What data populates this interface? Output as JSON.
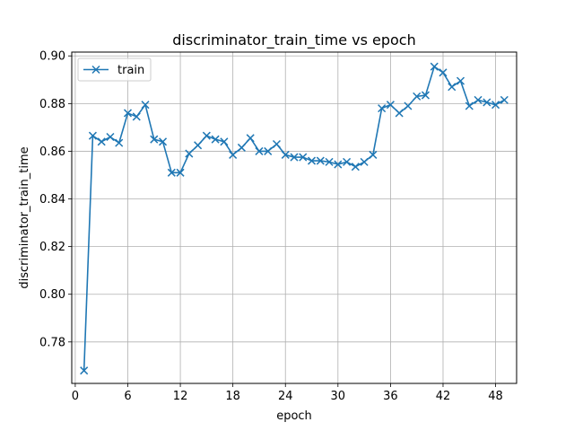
{
  "chart_data": {
    "type": "line",
    "title": "discriminator_train_time vs epoch",
    "xlabel": "epoch",
    "ylabel": "discriminator_train_time",
    "xlim": [
      -0.4,
      50.4
    ],
    "ylim": [
      0.7626,
      0.9016
    ],
    "xticks": [
      0,
      6,
      12,
      18,
      24,
      30,
      36,
      42,
      48
    ],
    "yticks": [
      0.78,
      0.8,
      0.82,
      0.84,
      0.86,
      0.88,
      0.9
    ],
    "ytick_labels": [
      "0.78",
      "0.80",
      "0.82",
      "0.84",
      "0.86",
      "0.88",
      "0.90"
    ],
    "grid": true,
    "legend_position": "top-left",
    "colors": {
      "series": "#1f77b4",
      "grid": "#b0b0b0"
    },
    "series": [
      {
        "name": "train",
        "marker": "x",
        "x": [
          1,
          2,
          3,
          4,
          5,
          6,
          7,
          8,
          9,
          10,
          11,
          12,
          13,
          14,
          15,
          16,
          17,
          18,
          19,
          20,
          21,
          22,
          23,
          24,
          25,
          26,
          27,
          28,
          29,
          30,
          31,
          32,
          33,
          34,
          35,
          36,
          37,
          38,
          39,
          40,
          41,
          42,
          43,
          44,
          45,
          46,
          47,
          48,
          49
        ],
        "values": [
          0.768,
          0.8665,
          0.864,
          0.866,
          0.8635,
          0.876,
          0.8745,
          0.8795,
          0.865,
          0.864,
          0.851,
          0.851,
          0.859,
          0.8625,
          0.8665,
          0.865,
          0.864,
          0.8585,
          0.8615,
          0.8655,
          0.86,
          0.86,
          0.863,
          0.8585,
          0.8575,
          0.8575,
          0.856,
          0.856,
          0.8555,
          0.8545,
          0.8555,
          0.8535,
          0.8555,
          0.8585,
          0.878,
          0.8795,
          0.876,
          0.879,
          0.883,
          0.8835,
          0.8955,
          0.893,
          0.887,
          0.8895,
          0.879,
          0.8815,
          0.8805,
          0.8795,
          0.8815
        ]
      }
    ]
  }
}
